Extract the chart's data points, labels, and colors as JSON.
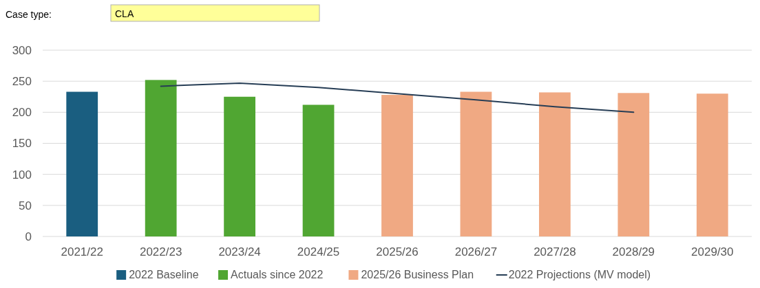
{
  "chart_data": {
    "type": "bar",
    "annotations": [
      "Case type:",
      "CLA"
    ],
    "categories": [
      "2021/22",
      "2022/23",
      "2023/24",
      "2024/25",
      "2025/26",
      "2026/27",
      "2027/28",
      "2028/29",
      "2029/30"
    ],
    "series": [
      {
        "name": "2022 Baseline",
        "color": "#1a5e80",
        "values": [
          233,
          null,
          null,
          null,
          null,
          null,
          null,
          null,
          null
        ]
      },
      {
        "name": "Actuals since 2022",
        "color": "#50a632",
        "values": [
          null,
          252,
          225,
          212,
          null,
          null,
          null,
          null,
          null
        ]
      },
      {
        "name": "2025/26 Business Plan",
        "color": "#f0a983",
        "values": [
          null,
          null,
          null,
          null,
          228,
          233,
          232,
          231,
          230
        ]
      },
      {
        "name": "2022 Projections (MV model)",
        "type": "line",
        "color": "#263d55",
        "values": [
          null,
          242,
          247,
          240,
          230,
          220,
          209,
          200,
          null
        ]
      }
    ],
    "ylim": [
      0,
      300
    ],
    "yticks": [
      0,
      50,
      100,
      150,
      200,
      250,
      300
    ],
    "grid": "y",
    "legend": "bottom"
  }
}
